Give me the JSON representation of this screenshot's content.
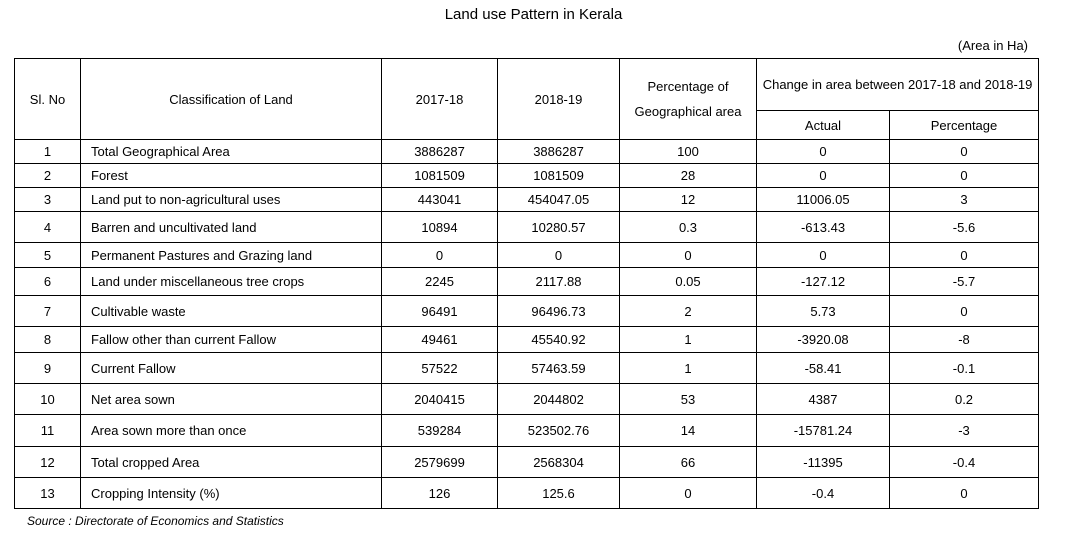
{
  "title": "Land use Pattern in Kerala",
  "unit_note": "(Area in Ha)",
  "headers": {
    "sl_no": "Sl. No",
    "classification": "Classification of Land",
    "y1": "2017-18",
    "y2": "2018-19",
    "pct_geo": "Percentage of Geographical area",
    "change_group": "Change in area between 2017-18 and 2018-19",
    "actual": "Actual",
    "percentage": "Percentage"
  },
  "rows": [
    {
      "sl": "1",
      "cls": "Total Geographical Area",
      "y1": "3886287",
      "y2": "3886287",
      "pct": "100",
      "actual": "0",
      "chg": "0"
    },
    {
      "sl": "2",
      "cls": "Forest",
      "y1": "1081509",
      "y2": "1081509",
      "pct": "28",
      "actual": "0",
      "chg": "0"
    },
    {
      "sl": "3",
      "cls": "Land put to non-agricultural uses",
      "y1": "443041",
      "y2": "454047.05",
      "pct": "12",
      "actual": "11006.05",
      "chg": "3"
    },
    {
      "sl": "4",
      "cls": "Barren and uncultivated land",
      "y1": "10894",
      "y2": "10280.57",
      "pct": "0.3",
      "actual": "-613.43",
      "chg": "-5.6"
    },
    {
      "sl": "5",
      "cls": "Permanent Pastures and Grazing land",
      "y1": "0",
      "y2": "0",
      "pct": "0",
      "actual": "0",
      "chg": "0"
    },
    {
      "sl": "6",
      "cls": "Land under miscellaneous tree crops",
      "y1": "2245",
      "y2": "2117.88",
      "pct": "0.05",
      "actual": "-127.12",
      "chg": "-5.7"
    },
    {
      "sl": "7",
      "cls": "Cultivable waste",
      "y1": "96491",
      "y2": "96496.73",
      "pct": "2",
      "actual": "5.73",
      "chg": "0"
    },
    {
      "sl": "8",
      "cls": "Fallow other than current Fallow",
      "y1": "49461",
      "y2": "45540.92",
      "pct": "1",
      "actual": "-3920.08",
      "chg": "-8"
    },
    {
      "sl": "9",
      "cls": "Current Fallow",
      "y1": "57522",
      "y2": "57463.59",
      "pct": "1",
      "actual": "-58.41",
      "chg": "-0.1"
    },
    {
      "sl": "10",
      "cls": "Net area sown",
      "y1": "2040415",
      "y2": "2044802",
      "pct": "53",
      "actual": "4387",
      "chg": "0.2"
    },
    {
      "sl": "11",
      "cls": "Area sown more than once",
      "y1": "539284",
      "y2": "523502.76",
      "pct": "14",
      "actual": "-15781.24",
      "chg": "-3"
    },
    {
      "sl": "12",
      "cls": "Total cropped Area",
      "y1": "2579699",
      "y2": "2568304",
      "pct": "66",
      "actual": "-11395",
      "chg": "-0.4"
    },
    {
      "sl": "13",
      "cls": "Cropping Intensity (%)",
      "y1": "126",
      "y2": "125.6",
      "pct": "0",
      "actual": "-0.4",
      "chg": "0"
    }
  ],
  "source": "Source : Directorate of Economics and Statistics"
}
